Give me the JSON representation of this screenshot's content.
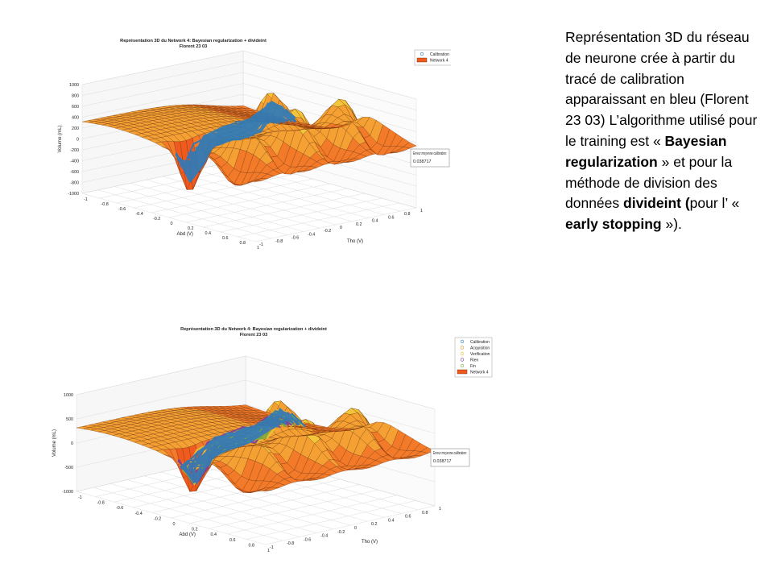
{
  "chart_data": [
    {
      "type": "surface",
      "title": "Représentation 3D du Network 4: Bayesian regularization + divideint",
      "subtitle": "Florent 23 03",
      "xlabel": "Abd (V)",
      "ylabel": "Tho (V)",
      "zlabel": "Volume (mL)",
      "xticks": [
        "-1",
        "-0.8",
        "-0.6",
        "-0.4",
        "-0.2",
        "0",
        "0.2",
        "0.4",
        "0.6",
        "0.8",
        "1"
      ],
      "yticks": [
        "-1",
        "-0.8",
        "-0.6",
        "-0.4",
        "-0.2",
        "0",
        "0.2",
        "0.4",
        "0.6",
        "0.8",
        "1"
      ],
      "zticks": [
        "-1000",
        "-800",
        "-600",
        "-400",
        "-200",
        "0",
        "200",
        "400",
        "600",
        "800",
        "1000"
      ],
      "zlim": [
        -1000,
        1000
      ],
      "legend": [
        "Calibration",
        "Network 4"
      ],
      "legend_position": "top-right",
      "annotation_label": "Erreur moyenne calibration:",
      "annotation_value": "0.038717",
      "colors": {
        "surface": "#f05a1e",
        "surface_peak": "#f2c53a",
        "calibration": "#2a7bbd"
      }
    },
    {
      "type": "surface",
      "title": "Représentation 3D du Network 4: Bayesian regularization + divideint",
      "subtitle": "Florent 23 03",
      "xlabel": "Abd (V)",
      "ylabel": "Tho (V)",
      "zlabel": "Volume (mL)",
      "xticks": [
        "-1",
        "-0.8",
        "-0.6",
        "-0.4",
        "-0.2",
        "0",
        "0.2",
        "0.4",
        "0.6",
        "0.8",
        "1"
      ],
      "yticks": [
        "-1",
        "-0.8",
        "-0.6",
        "-0.4",
        "-0.2",
        "0",
        "0.2",
        "0.4",
        "0.6",
        "0.8",
        "1"
      ],
      "zticks": [
        "-1000",
        "-500",
        "0",
        "500",
        "1000"
      ],
      "zlim": [
        -1000,
        1000
      ],
      "legend": [
        "Calibration",
        "Acquisition",
        "Verification",
        "Rien",
        "Fin",
        "Network 4"
      ],
      "legend_position": "top-right",
      "annotation_label": "Erreur moyenne calibration:",
      "annotation_value": "0.038717",
      "colors": {
        "surface": "#f05a1e",
        "surface_peak": "#f2c53a",
        "calibration": "#2a7bbd",
        "acquisition": "#e28a2f",
        "verification": "#e6c437",
        "rien": "#7b3fa0",
        "fin": "#6fae3c"
      }
    }
  ],
  "description": {
    "line1": "Représentation 3D du réseau de neurone crée à partir du tracé de calibration apparaissant en bleu (Florent 23 03) L’algorithme utilisé pour le training est « ",
    "b1": "Bayesian regularization",
    "line2": " » et pour la méthode de division des données ",
    "b2": "divideint (",
    "line3": "pour l’ « ",
    "b3": "early stopping",
    "line4": " »)."
  }
}
